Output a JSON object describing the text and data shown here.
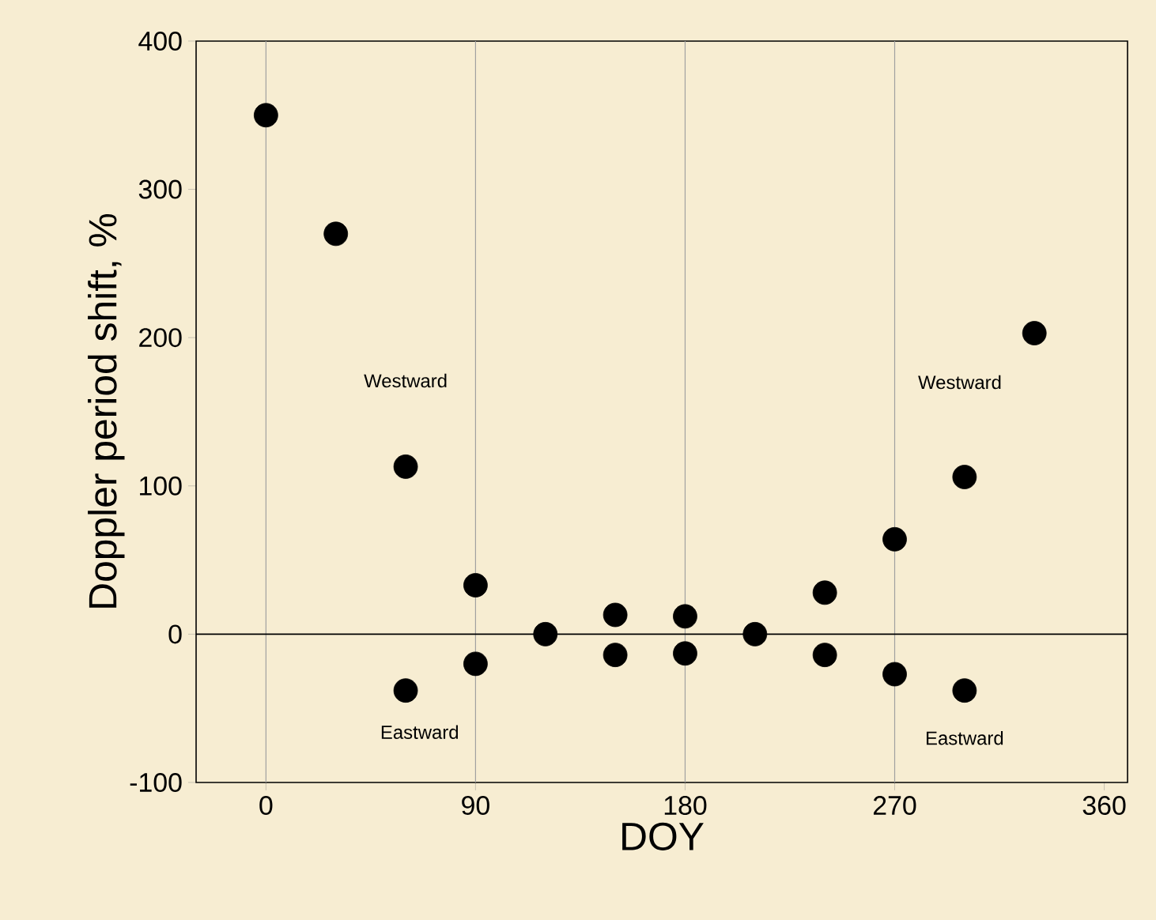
{
  "chart_data": {
    "type": "scatter",
    "xlabel": "DOY",
    "ylabel": "Doppler period shift, %",
    "x": [
      0,
      30,
      60,
      60,
      90,
      90,
      120,
      150,
      150,
      180,
      180,
      210,
      240,
      240,
      270,
      270,
      300,
      300,
      330
    ],
    "values": [
      350,
      270,
      113,
      -38,
      33,
      -20,
      0,
      13,
      -14,
      12,
      -13,
      0,
      28,
      -14,
      64,
      -27,
      106,
      -38,
      203
    ],
    "color": "#000000",
    "xlim": [
      -30,
      370
    ],
    "ylim": [
      -100,
      400
    ],
    "xticks": [
      0,
      90,
      180,
      270,
      360
    ],
    "yticks": [
      -100,
      0,
      100,
      200,
      300,
      400
    ],
    "ref_lines": [
      {
        "axis": "x",
        "value": 0,
        "color": "#a0a0a0"
      },
      {
        "axis": "x",
        "value": 90,
        "color": "#a0a0a0"
      },
      {
        "axis": "x",
        "value": 180,
        "color": "#a0a0a0"
      },
      {
        "axis": "x",
        "value": 270,
        "color": "#a0a0a0"
      },
      {
        "axis": "y",
        "value": 0,
        "color": "#000000"
      }
    ],
    "annotations": [
      "Westward",
      "Eastward",
      "Westward",
      "Eastward"
    ]
  }
}
